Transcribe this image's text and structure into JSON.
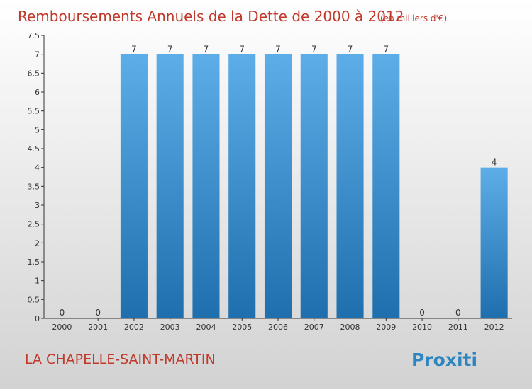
{
  "header": {
    "title": "Remboursements Annuels de la Dette de 2000 à 2012",
    "unit": "(en milliers d'€)"
  },
  "footer": {
    "location": "LA CHAPELLE-SAINT-MARTIN",
    "logo_text": "Proxiti"
  },
  "colors": {
    "title": "#c0392b",
    "bar_light": "#5dade8",
    "bar_dark": "#1f6fae",
    "axis": "#333333",
    "background_top": "#ffffff",
    "background_bottom": "#d2d2d2"
  },
  "chart_data": {
    "type": "bar",
    "title": "Remboursements Annuels de la Dette de 2000 à 2012",
    "subtitle": "(en milliers d'€)",
    "categories": [
      "2000",
      "2001",
      "2002",
      "2003",
      "2004",
      "2005",
      "2006",
      "2007",
      "2008",
      "2009",
      "2010",
      "2011",
      "2012"
    ],
    "values": [
      0,
      0,
      7,
      7,
      7,
      7,
      7,
      7,
      7,
      7,
      0,
      0,
      4
    ],
    "value_labels": [
      "0",
      "0",
      "7",
      "7",
      "7",
      "7",
      "7",
      "7",
      "7",
      "7",
      "0",
      "0",
      "4"
    ],
    "y_ticks": [
      "0",
      "0.5",
      "1",
      "1.5",
      "2",
      "2.5",
      "3",
      "3.5",
      "4",
      "4.5",
      "5",
      "5.5",
      "6",
      "6.5",
      "7",
      "7.5"
    ],
    "ylim": [
      0,
      7.5
    ],
    "xlabel": "",
    "ylabel": "",
    "grid": false,
    "legend": "none"
  }
}
